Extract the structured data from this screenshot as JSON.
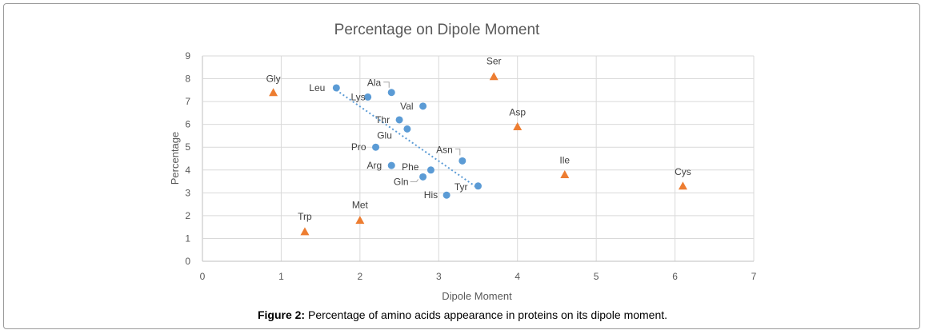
{
  "caption": {
    "label": "Figure 2:",
    "text": " Percentage of amino acids appearance in proteins on its dipole moment."
  },
  "chart_data": {
    "type": "scatter",
    "title": "Percentage on Dipole Moment",
    "xlabel": "Dipole Moment",
    "ylabel": "Percentage",
    "xlim": [
      0,
      7
    ],
    "ylim": [
      0,
      9
    ],
    "xticks": [
      "0",
      "1",
      "2",
      "3",
      "4",
      "5",
      "6",
      "7"
    ],
    "yticks": [
      "0",
      "1",
      "2",
      "3",
      "4",
      "5",
      "6",
      "7",
      "8",
      "9"
    ],
    "grid": true,
    "colors": {
      "circle": "#5b9bd5",
      "triangle": "#ed7d31",
      "trend": "#5b9bd5"
    },
    "series": [
      {
        "marker": "circle",
        "points": [
          {
            "label": "Leu",
            "x": 1.7,
            "y": 7.6
          },
          {
            "label": "Lys",
            "x": 2.1,
            "y": 7.2
          },
          {
            "label": "Ala",
            "x": 2.4,
            "y": 7.4
          },
          {
            "label": "Val",
            "x": 2.8,
            "y": 6.8
          },
          {
            "label": "Thr",
            "x": 2.5,
            "y": 6.2
          },
          {
            "label": "Glu",
            "x": 2.6,
            "y": 5.8
          },
          {
            "label": "Pro",
            "x": 2.2,
            "y": 5.0
          },
          {
            "label": "Asn",
            "x": 3.3,
            "y": 4.4
          },
          {
            "label": "Arg",
            "x": 2.4,
            "y": 4.2
          },
          {
            "label": "Phe",
            "x": 2.9,
            "y": 4.0
          },
          {
            "label": "Gln",
            "x": 2.8,
            "y": 3.7
          },
          {
            "label": "Tyr",
            "x": 3.5,
            "y": 3.3
          },
          {
            "label": "His",
            "x": 3.1,
            "y": 2.9
          }
        ],
        "trendline": {
          "x": [
            1.7,
            3.5
          ],
          "y": [
            7.5,
            3.2
          ]
        }
      },
      {
        "marker": "triangle",
        "points": [
          {
            "label": "Gly",
            "x": 0.9,
            "y": 7.4
          },
          {
            "label": "Ser",
            "x": 3.7,
            "y": 8.1
          },
          {
            "label": "Asp",
            "x": 4.0,
            "y": 5.9
          },
          {
            "label": "Ile",
            "x": 4.6,
            "y": 3.8
          },
          {
            "label": "Cys",
            "x": 6.1,
            "y": 3.3
          },
          {
            "label": "Trp",
            "x": 1.3,
            "y": 1.3
          },
          {
            "label": "Met",
            "x": 2.0,
            "y": 1.8
          }
        ]
      }
    ]
  }
}
